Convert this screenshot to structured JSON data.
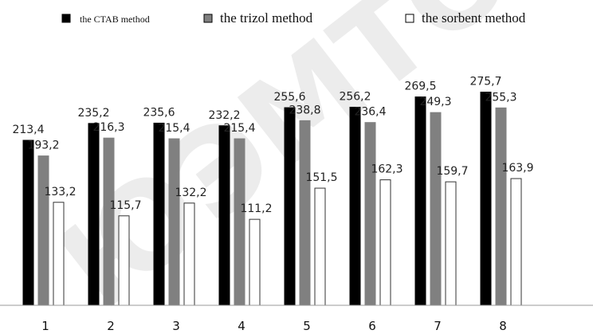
{
  "chart_data": {
    "type": "bar",
    "categories": [
      "1",
      "2",
      "3",
      "4",
      "5",
      "6",
      "7",
      "8"
    ],
    "series": [
      {
        "name": "the CTAB method",
        "color": "#000000",
        "values": [
          213.4,
          235.2,
          235.6,
          232.2,
          255.6,
          256.2,
          269.5,
          275.7
        ],
        "labels": [
          "213,4",
          "235,2",
          "235,6",
          "232,2",
          "255,6",
          "256,2",
          "269,5",
          "275,7"
        ]
      },
      {
        "name": "the trizol method",
        "color": "#808080",
        "values": [
          193.2,
          216.3,
          215.4,
          215.4,
          238.8,
          236.4,
          249.3,
          255.3
        ],
        "labels": [
          "193,2",
          "216,3",
          "215,4",
          "215,4",
          "238,8",
          "236,4",
          "249,3",
          "255,3"
        ]
      },
      {
        "name": "the sorbent method",
        "color": "#ffffff",
        "values": [
          133.2,
          115.7,
          132.2,
          111.2,
          151.5,
          162.3,
          159.7,
          163.9
        ],
        "labels": [
          "133,2",
          "115,7",
          "132,2",
          "111,2",
          "151,5",
          "162,3",
          "159,7",
          "163,9"
        ]
      }
    ],
    "legend_position": "top",
    "grid": false,
    "ylim": [
      0,
      300
    ],
    "watermark": "ЮЭМТО"
  }
}
